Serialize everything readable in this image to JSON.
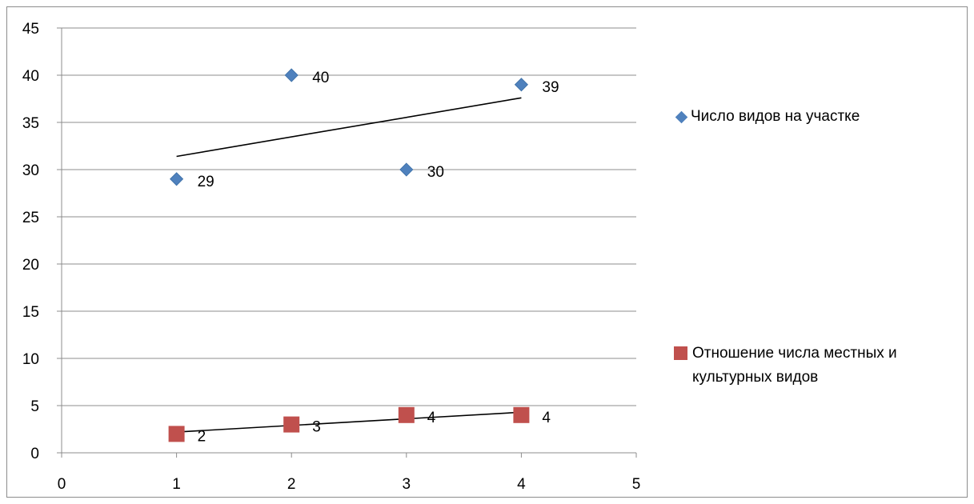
{
  "chart_data": {
    "type": "scatter",
    "xlim": [
      0,
      5
    ],
    "ylim": [
      0,
      45
    ],
    "x_ticks": [
      0,
      1,
      2,
      3,
      4,
      5
    ],
    "y_ticks": [
      0,
      5,
      10,
      15,
      20,
      25,
      30,
      35,
      40,
      45
    ],
    "grid": "horizontal",
    "legend_position": "right",
    "series": [
      {
        "name": "Число видов на участке",
        "marker": "diamond",
        "color": "#4f81bd",
        "points": [
          [
            1,
            29
          ],
          [
            2,
            40
          ],
          [
            3,
            30
          ],
          [
            4,
            39
          ]
        ],
        "labels": [
          "29",
          "40",
          "30",
          "39"
        ],
        "trendline": [
          [
            1,
            31.4
          ],
          [
            4,
            37.6
          ]
        ]
      },
      {
        "name": "Отношение числа местных и культурных видов",
        "name_lines": [
          "Отношение числа местных и",
          "культурных видов"
        ],
        "marker": "square",
        "color": "#c0504d",
        "points": [
          [
            1,
            2
          ],
          [
            2,
            3
          ],
          [
            3,
            4
          ],
          [
            4,
            4
          ]
        ],
        "labels": [
          "2",
          "3",
          "4",
          "4"
        ],
        "trendline": [
          [
            1,
            2.2
          ],
          [
            4,
            4.3
          ]
        ]
      }
    ]
  }
}
